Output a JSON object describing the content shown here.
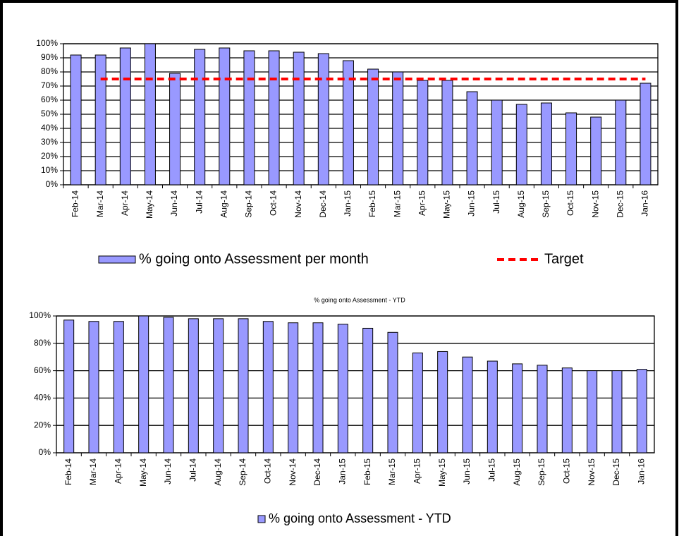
{
  "chart_data": [
    {
      "type": "bar",
      "categories": [
        "Feb-14",
        "Mar-14",
        "Apr-14",
        "May-14",
        "Jun-14",
        "Jul-14",
        "Aug-14",
        "Sep-14",
        "Oct-14",
        "Nov-14",
        "Dec-14",
        "Jan-15",
        "Feb-15",
        "Mar-15",
        "Apr-15",
        "May-15",
        "Jun-15",
        "Jul-15",
        "Aug-15",
        "Sep-15",
        "Oct-15",
        "Nov-15",
        "Dec-15",
        "Jan-16"
      ],
      "series": [
        {
          "name": "% going onto Assessment per month",
          "color": "#9999ff",
          "type": "bar",
          "values": [
            92,
            92,
            97,
            100,
            79,
            96,
            97,
            95,
            95,
            94,
            93,
            88,
            82,
            80,
            74,
            74,
            66,
            60,
            57,
            58,
            51,
            48,
            60,
            72
          ]
        },
        {
          "name": "Target",
          "color": "#ff0000",
          "type": "line",
          "values": [
            null,
            75,
            75,
            75,
            75,
            75,
            75,
            75,
            75,
            75,
            75,
            75,
            75,
            75,
            75,
            75,
            75,
            75,
            75,
            75,
            75,
            75,
            75,
            75
          ]
        }
      ],
      "ylim": [
        0,
        100
      ],
      "yticks": [
        {
          "value": 0,
          "label": "0%"
        },
        {
          "value": 10,
          "label": "10%"
        },
        {
          "value": 20,
          "label": "20%"
        },
        {
          "value": 30,
          "label": "30%"
        },
        {
          "value": 40,
          "label": "40%"
        },
        {
          "value": 50,
          "label": "50%"
        },
        {
          "value": 60,
          "label": "60%"
        },
        {
          "value": 70,
          "label": "70%"
        },
        {
          "value": 80,
          "label": "80%"
        },
        {
          "value": 90,
          "label": "90%"
        },
        {
          "value": 100,
          "label": "100%"
        }
      ],
      "grid": true,
      "legend": "bottom"
    },
    {
      "type": "bar",
      "title": "% going onto Assessment - YTD",
      "categories": [
        "Feb-14",
        "Mar-14",
        "Apr-14",
        "May-14",
        "Jun-14",
        "Jul-14",
        "Aug-14",
        "Sep-14",
        "Oct-14",
        "Nov-14",
        "Dec-14",
        "Jan-15",
        "Feb-15",
        "Mar-15",
        "Apr-15",
        "May-15",
        "Jun-15",
        "Jul-15",
        "Aug-15",
        "Sep-15",
        "Oct-15",
        "Nov-15",
        "Dec-15",
        "Jan-16"
      ],
      "series": [
        {
          "name": "% going onto Assessment - YTD",
          "color": "#9999ff",
          "type": "bar",
          "values": [
            97,
            96,
            96,
            100,
            99,
            98,
            98,
            98,
            96,
            95,
            95,
            94,
            91,
            88,
            73,
            74,
            70,
            67,
            65,
            64,
            62,
            60,
            60,
            61
          ]
        }
      ],
      "ylim": [
        0,
        100
      ],
      "yticks": [
        {
          "value": 0,
          "label": "0%"
        },
        {
          "value": 20,
          "label": "20%"
        },
        {
          "value": 40,
          "label": "40%"
        },
        {
          "value": 60,
          "label": "60%"
        },
        {
          "value": 80,
          "label": "80%"
        },
        {
          "value": 100,
          "label": "100%"
        }
      ],
      "grid": true,
      "legend": "bottom"
    }
  ]
}
